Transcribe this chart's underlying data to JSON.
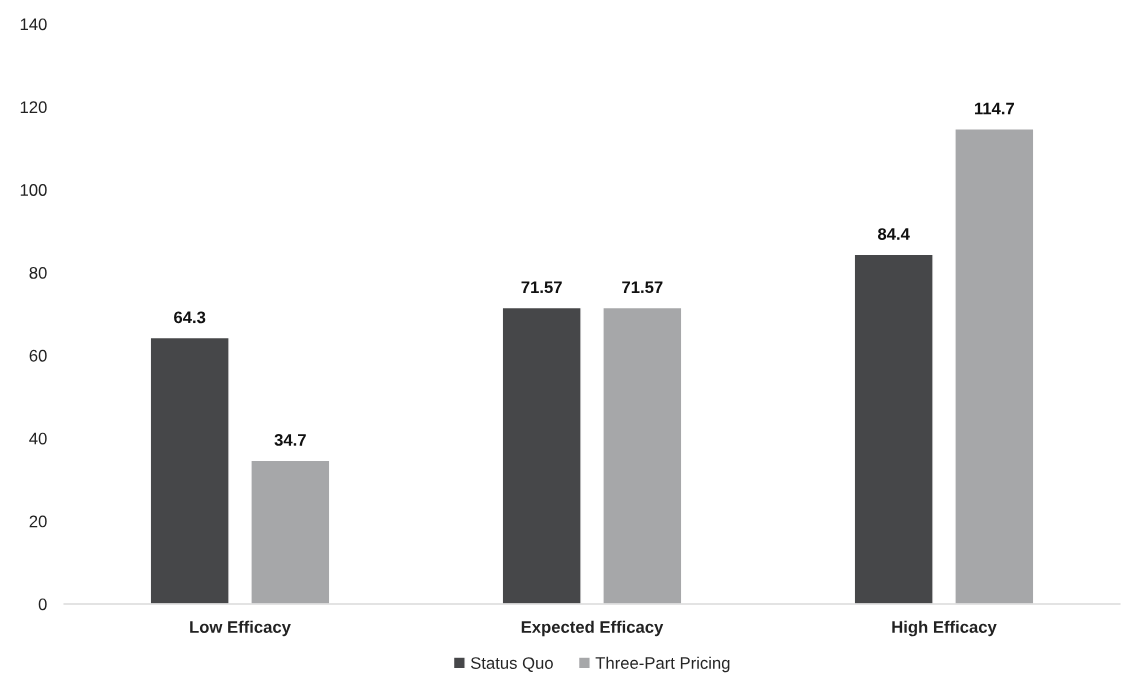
{
  "chart_data": {
    "type": "bar",
    "categories": [
      "Low Efficacy",
      "Expected Efficacy",
      "High Efficacy"
    ],
    "series": [
      {
        "name": "Status Quo",
        "color": "#464749",
        "values": [
          64.3,
          71.57,
          84.4
        ]
      },
      {
        "name": "Three-Part Pricing",
        "color": "#a6a7a9",
        "values": [
          34.7,
          71.57,
          114.7
        ]
      }
    ],
    "ylim": [
      0,
      140
    ],
    "yticks": [
      0,
      20,
      40,
      60,
      80,
      100,
      120,
      140
    ],
    "data_labels": true,
    "grid": false,
    "legend": "bottom"
  }
}
